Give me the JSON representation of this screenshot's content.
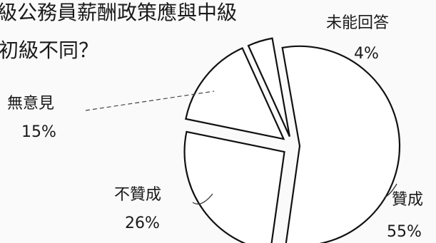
{
  "chart_data": {
    "type": "pie",
    "title_lines": [
      "級公務員薪酬政策應與中級",
      "初級不同？"
    ],
    "categories": [
      "贊成",
      "不贊成",
      "無意見",
      "未能回答"
    ],
    "values": [
      55,
      26,
      15,
      4
    ],
    "value_labels": [
      "55%",
      "26%",
      "15%",
      "4%"
    ],
    "colors": [
      "#ffffff",
      "#ffffff",
      "#ffffff",
      "#ffffff"
    ],
    "outline_color": "#111111",
    "exploded": true,
    "legend": "none"
  }
}
